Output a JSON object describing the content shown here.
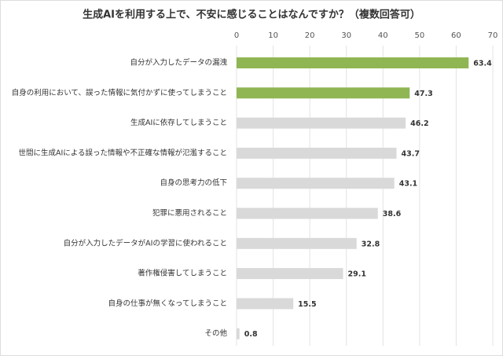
{
  "chart_data": {
    "type": "barh",
    "title": "生成AIを利用する上で、不安に感じることはなんですか？（複数回答可）",
    "categories": [
      "自分が入力したデータの漏洩",
      "自身の利用において、誤った情報に気付かずに使ってしまうこと",
      "生成AIに依存してしまうこと",
      "世間に生成AIによる誤った情報や不正確な情報が氾濫すること",
      "自身の思考力の低下",
      "犯罪に悪用されること",
      "自分が入力したデータがAIの学習に使われること",
      "著作権侵害してしまうこと",
      "自身の仕事が無くなってしまうこと",
      "その他"
    ],
    "values": [
      63.4,
      47.3,
      46.2,
      43.7,
      43.1,
      38.6,
      32.8,
      29.1,
      15.5,
      0.8
    ],
    "colors": [
      "#8fb653",
      "#8fb653",
      "#d9d9d9",
      "#d9d9d9",
      "#d9d9d9",
      "#d9d9d9",
      "#d9d9d9",
      "#d9d9d9",
      "#d9d9d9",
      "#d9d9d9"
    ],
    "xlim": [
      0,
      70
    ],
    "xticks": [
      0,
      10,
      20,
      30,
      40,
      50,
      60,
      70
    ],
    "grid": true
  }
}
